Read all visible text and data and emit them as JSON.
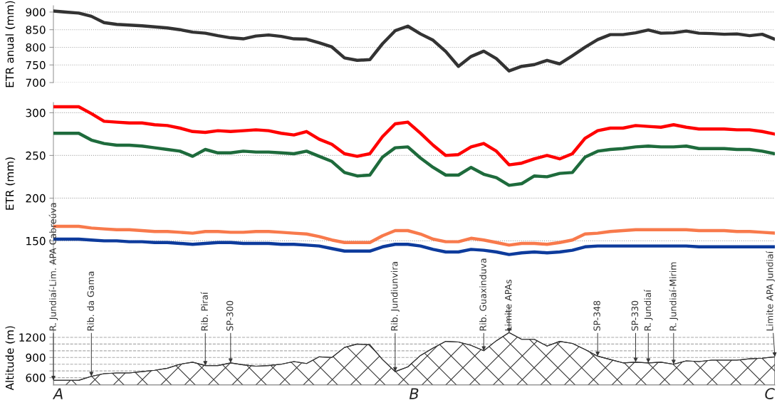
{
  "chart_data": [
    {
      "type": "line",
      "ylabel": "ETR anual (mm)",
      "ylim": [
        700,
        918
      ],
      "yticks": [
        700,
        750,
        800,
        850,
        900
      ],
      "grid": "y",
      "tick_labels": "y",
      "categories": [
        null,
        null,
        null,
        null,
        null,
        null,
        null,
        null,
        null,
        null,
        null,
        null,
        null,
        null,
        null,
        null,
        null,
        null,
        null,
        null,
        null,
        null,
        null,
        null,
        null,
        null,
        null,
        null,
        null,
        null,
        null,
        null,
        null,
        null,
        null,
        null,
        null,
        null,
        null,
        null,
        null,
        null,
        null,
        null,
        null,
        null,
        null,
        null,
        null,
        null,
        null,
        null,
        null,
        null,
        null,
        null,
        null,
        null
      ],
      "series": [
        {
          "color": "#333333",
          "values": [
            903,
            900,
            897,
            888,
            870,
            865,
            863,
            861,
            858,
            855,
            850,
            843,
            840,
            833,
            827,
            824,
            832,
            835,
            831,
            824,
            823,
            813,
            801,
            770,
            763,
            765,
            810,
            847,
            860,
            838,
            820,
            788,
            746,
            774,
            789,
            768,
            733,
            746,
            751,
            763,
            753,
            776,
            800,
            822,
            836,
            836,
            841,
            849,
            840,
            841,
            846,
            840,
            839,
            837,
            838,
            833,
            837,
            823
          ]
        }
      ]
    },
    {
      "type": "line",
      "ylabel": "ETR (mm)",
      "ylim": [
        122,
        312
      ],
      "yticks": [
        150,
        200,
        250,
        300
      ],
      "grid": "y",
      "tick_labels": "y",
      "categories": [
        null,
        null,
        null,
        null,
        null,
        null,
        null,
        null,
        null,
        null,
        null,
        null,
        null,
        null,
        null,
        null,
        null,
        null,
        null,
        null,
        null,
        null,
        null,
        null,
        null,
        null,
        null,
        null,
        null,
        null,
        null,
        null,
        null,
        null,
        null,
        null,
        null,
        null,
        null,
        null,
        null,
        null,
        null,
        null,
        null,
        null,
        null,
        null,
        null,
        null,
        null,
        null,
        null,
        null,
        null,
        null,
        null,
        null
      ],
      "series": [
        {
          "color": "#ff0000",
          "values": [
            307,
            307,
            307,
            299,
            290,
            289,
            288,
            288,
            286,
            285,
            282,
            278,
            277,
            279,
            278,
            279,
            280,
            279,
            276,
            274,
            278,
            269,
            263,
            252,
            249,
            252,
            272,
            287,
            289,
            276,
            262,
            250,
            251,
            260,
            264,
            255,
            239,
            241,
            246,
            250,
            246,
            252,
            270,
            279,
            282,
            282,
            285,
            284,
            283,
            286,
            283,
            281,
            281,
            281,
            280,
            280,
            278,
            275
          ]
        },
        {
          "color": "#1e6b3c",
          "values": [
            276,
            276,
            276,
            268,
            264,
            262,
            262,
            261,
            259,
            257,
            255,
            249,
            257,
            253,
            253,
            255,
            254,
            254,
            253,
            252,
            255,
            249,
            243,
            230,
            226,
            227,
            248,
            259,
            260,
            247,
            236,
            227,
            227,
            236,
            228,
            224,
            215,
            217,
            226,
            225,
            229,
            230,
            248,
            255,
            257,
            258,
            260,
            261,
            260,
            260,
            261,
            258,
            258,
            258,
            257,
            257,
            255,
            252
          ]
        },
        {
          "color": "#f87a4c",
          "values": [
            167,
            167,
            167,
            165,
            164,
            163,
            163,
            162,
            161,
            161,
            160,
            159,
            161,
            161,
            160,
            160,
            161,
            161,
            160,
            159,
            158,
            155,
            151,
            148,
            148,
            148,
            156,
            162,
            162,
            158,
            152,
            149,
            149,
            153,
            151,
            148,
            145,
            147,
            147,
            146,
            148,
            151,
            158,
            159,
            161,
            162,
            163,
            163,
            163,
            163,
            163,
            162,
            162,
            162,
            161,
            161,
            160,
            159
          ]
        },
        {
          "color": "#0d3b9c",
          "values": [
            152,
            152,
            152,
            151,
            150,
            150,
            149,
            149,
            148,
            148,
            147,
            146,
            147,
            148,
            148,
            147,
            147,
            147,
            146,
            146,
            145,
            144,
            141,
            138,
            138,
            138,
            143,
            146,
            146,
            144,
            140,
            137,
            137,
            140,
            139,
            137,
            134,
            136,
            137,
            136,
            137,
            139,
            143,
            144,
            144,
            144,
            144,
            144,
            144,
            144,
            144,
            143,
            143,
            143,
            143,
            143,
            143,
            143
          ]
        }
      ]
    },
    {
      "type": "area",
      "ylabel": "Altitude (m)",
      "ylim": [
        490,
        1300
      ],
      "yticks": [
        600,
        {
          "value": 700,
          "label": null
        },
        {
          "value": 800,
          "label": null
        },
        900,
        {
          "value": 1000,
          "label": null
        },
        {
          "value": 1100,
          "label": null
        },
        1200
      ],
      "grid": "y",
      "categories": [
        "R. Jundiaí-Lim. APA Cabreúva",
        null,
        null,
        "Rib. da Gama",
        null,
        null,
        null,
        null,
        null,
        null,
        null,
        null,
        "Rib. Piraí",
        null,
        "SP-300",
        null,
        null,
        null,
        null,
        null,
        null,
        null,
        null,
        null,
        null,
        null,
        null,
        "Rib. Jundiunvira",
        null,
        null,
        null,
        null,
        null,
        null,
        "Rib. Guaxinduva",
        null,
        "Limite APAs",
        null,
        null,
        null,
        null,
        null,
        null,
        "SP-348",
        null,
        null,
        "SP-330",
        "R. Jundiaí",
        null,
        "R. Jundiaí-Mirim",
        null,
        null,
        null,
        null,
        null,
        null,
        null,
        "Limite APA Jundiaí"
      ],
      "series": [
        {
          "color": "#333333",
          "values": [
            560,
            560,
            560,
            620,
            660,
            670,
            670,
            690,
            710,
            740,
            800,
            830,
            780,
            780,
            820,
            790,
            770,
            780,
            800,
            840,
            810,
            910,
            900,
            1050,
            1100,
            1090,
            870,
            690,
            760,
            930,
            1040,
            1140,
            1130,
            1080,
            1000,
            1150,
            1270,
            1170,
            1170,
            1070,
            1140,
            1110,
            1020,
            920,
            870,
            820,
            830,
            820,
            830,
            800,
            850,
            840,
            860,
            860,
            860,
            880,
            890,
            910
          ]
        }
      ],
      "annotations": [
        "A",
        "B",
        "C"
      ]
    }
  ]
}
